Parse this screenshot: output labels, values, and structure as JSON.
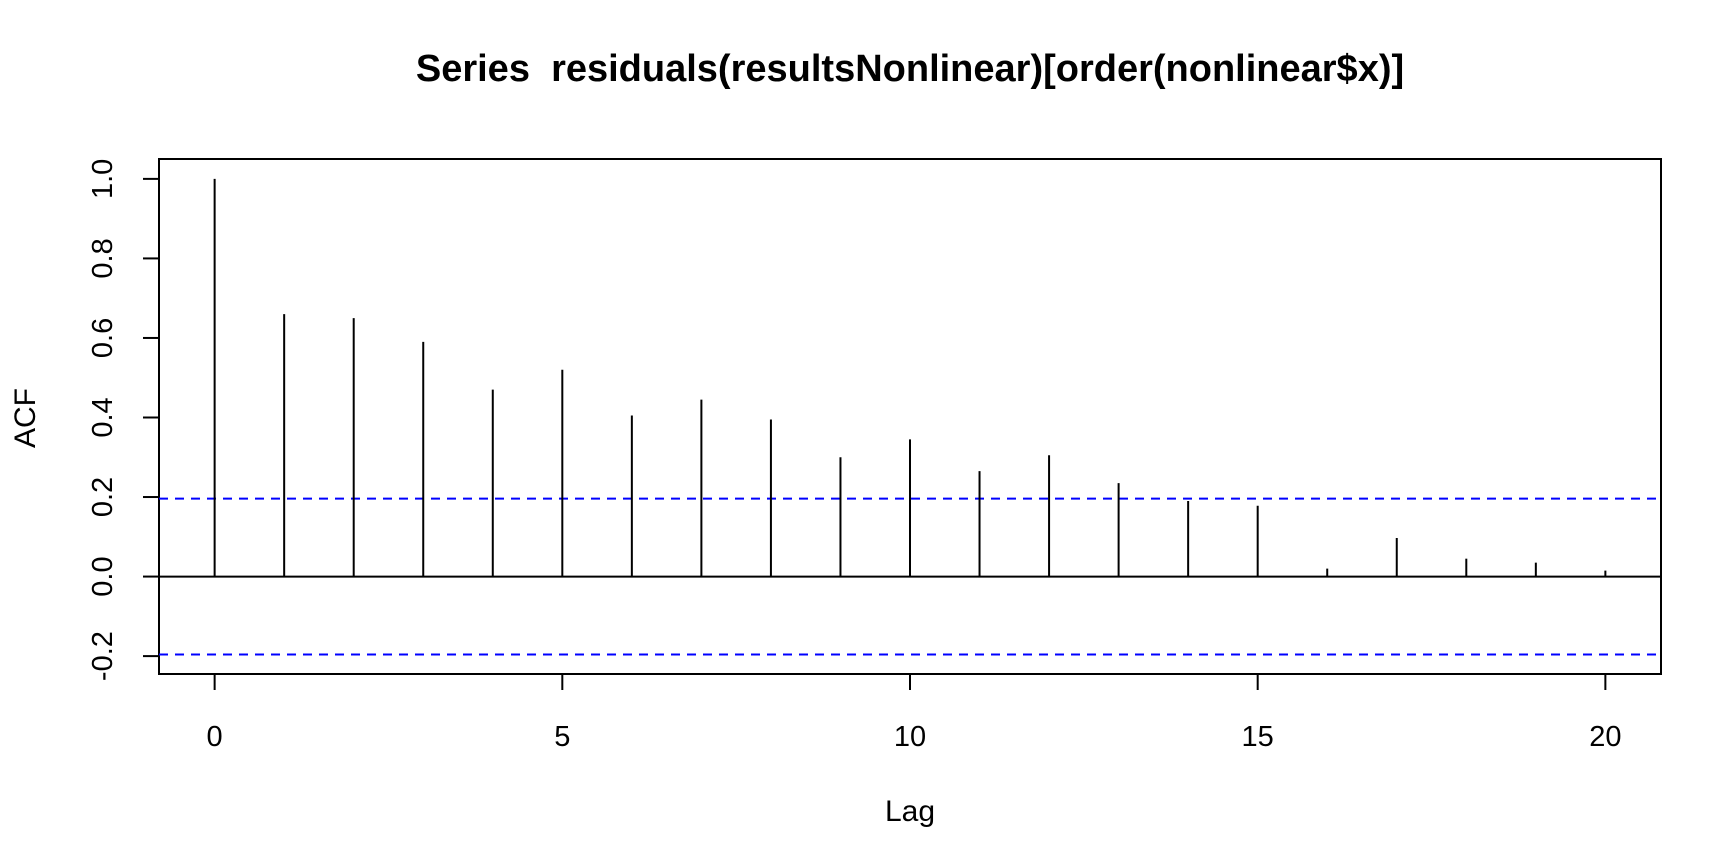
{
  "chart_data": {
    "type": "bar",
    "title": "Series  residuals(resultsNonlinear)[order(nonlinear$x)]",
    "xlabel": "Lag",
    "ylabel": "ACF",
    "xlim": [
      -0.8,
      20.8
    ],
    "ylim": [
      -0.245,
      1.05
    ],
    "x_ticks": [
      0,
      5,
      10,
      15,
      20
    ],
    "y_ticks": [
      -0.2,
      0.0,
      0.2,
      0.4,
      0.6,
      0.8,
      1.0
    ],
    "x_tick_labels": [
      "0",
      "5",
      "10",
      "15",
      "20"
    ],
    "y_tick_labels": [
      "-0.2",
      "0.0",
      "0.2",
      "0.4",
      "0.6",
      "0.8",
      "1.0"
    ],
    "lags": [
      0,
      1,
      2,
      3,
      4,
      5,
      6,
      7,
      8,
      9,
      10,
      11,
      12,
      13,
      14,
      15,
      16,
      17,
      18,
      19,
      20
    ],
    "values": [
      1.0,
      0.66,
      0.65,
      0.59,
      0.47,
      0.52,
      0.405,
      0.445,
      0.395,
      0.3,
      0.345,
      0.265,
      0.305,
      0.235,
      0.19,
      0.178,
      0.02,
      0.097,
      0.045,
      0.035,
      0.015
    ],
    "confidence_bound": 0.196,
    "zero_line": 0.0,
    "bound_color": "#0000ff",
    "bar_color": "#000000",
    "grid": false,
    "legend": "none"
  }
}
